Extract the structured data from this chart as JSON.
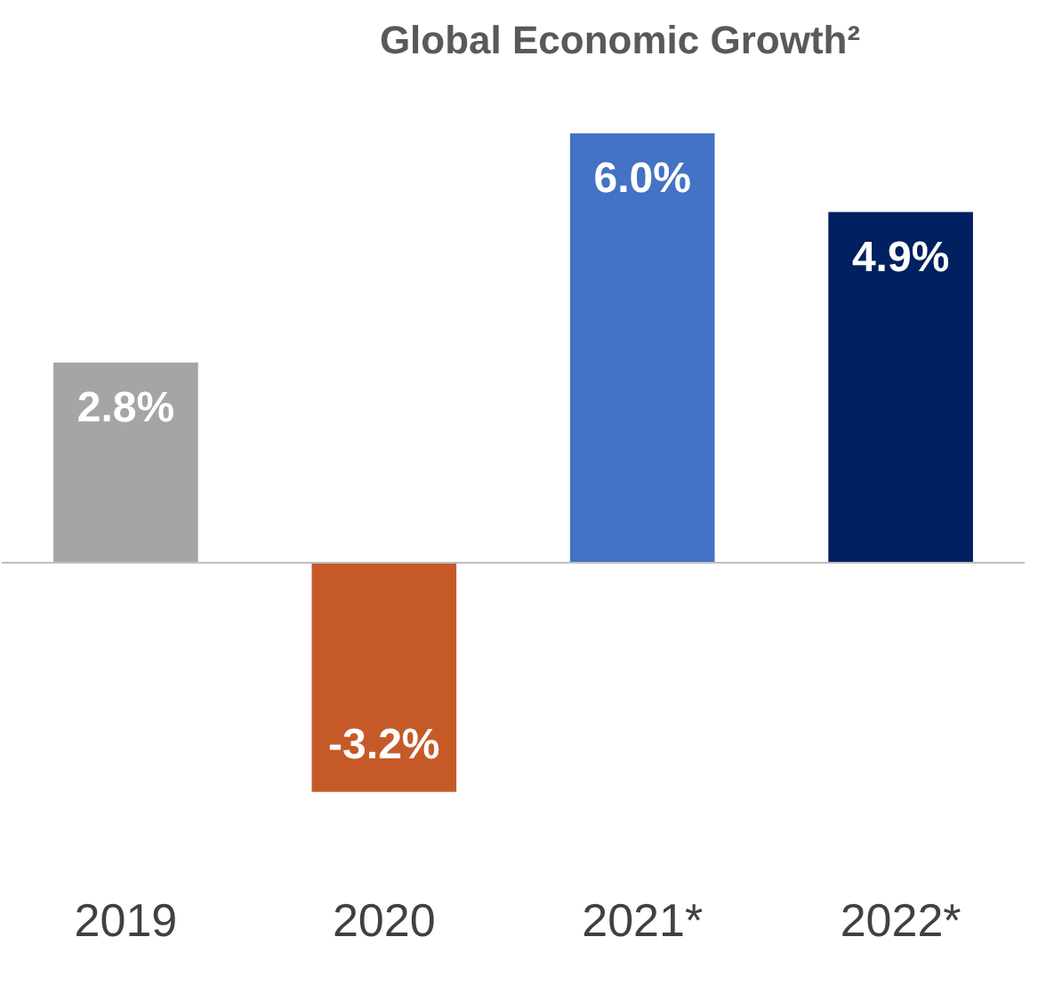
{
  "chart_data": {
    "type": "bar",
    "title": "Global Economic Growth²",
    "categories": [
      "2019",
      "2020",
      "2021*",
      "2022*"
    ],
    "values": [
      2.8,
      -3.2,
      6.0,
      4.9
    ],
    "colors": [
      "#a5a5a5",
      "#c55a28",
      "#4472c4",
      "#002060"
    ],
    "value_labels": [
      "2.8%",
      "-3.2%",
      "6.0%",
      "4.9%"
    ],
    "grid": false
  }
}
